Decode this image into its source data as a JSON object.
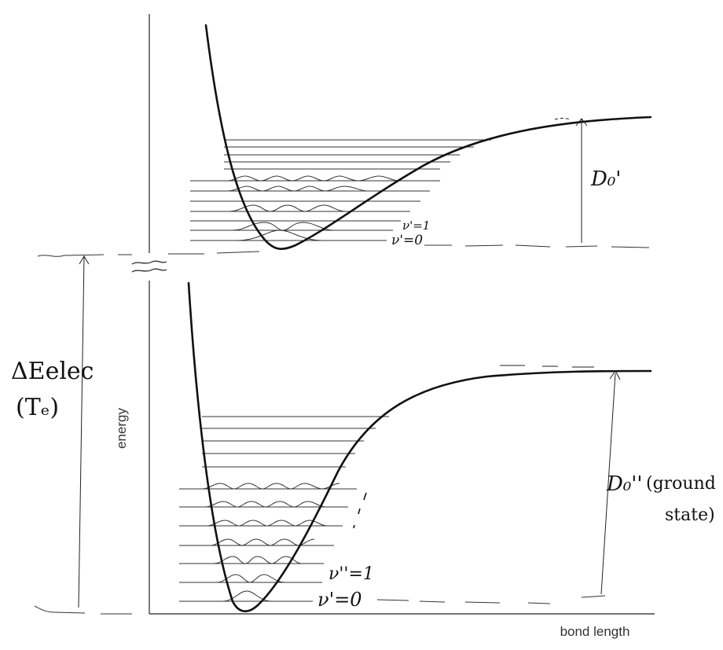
{
  "axes": {
    "y_label": "energy",
    "x_label": "bond length"
  },
  "upper_state": {
    "dissociation_label": "D₀'",
    "level_labels": [
      "ν'=1",
      "ν'=0"
    ],
    "level_count": 12
  },
  "lower_state": {
    "dissociation_label": "D₀''",
    "dissociation_note_line1": "(ground",
    "dissociation_note_line2": "state)",
    "level_labels": [
      "ν''=1",
      "ν'=0"
    ],
    "level_count": 12
  },
  "transition": {
    "label_line1": "ΔEelec",
    "label_line2": "(Tₑ)"
  },
  "colors": {
    "ink": "#111111",
    "line": "#222222",
    "axis_text": "#333333",
    "background": "#ffffff"
  }
}
